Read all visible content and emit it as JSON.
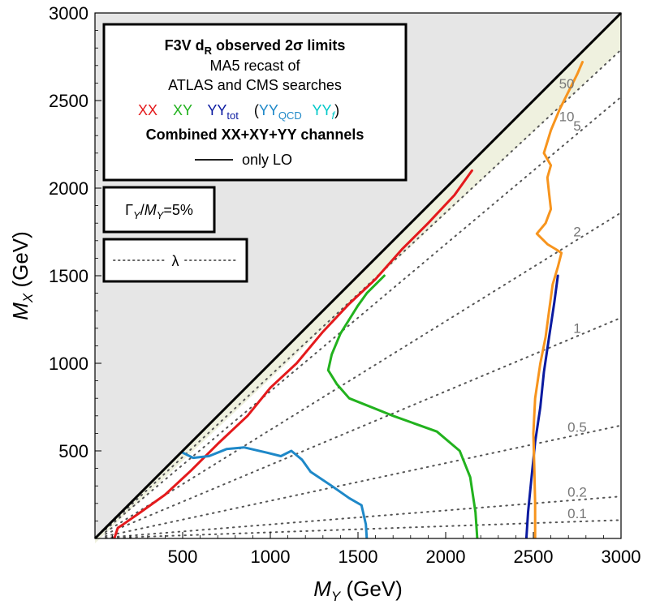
{
  "chart_data": {
    "type": "line",
    "xlabel": {
      "symbol": "M",
      "sub": "Y",
      "unit": " (GeV)"
    },
    "ylabel": {
      "symbol": "M",
      "sub": "X",
      "unit": " (GeV)"
    },
    "xlim": [
      0,
      3000
    ],
    "ylim": [
      0,
      3000
    ],
    "x_ticks": [
      500,
      1000,
      1500,
      2000,
      2500,
      3000
    ],
    "y_ticks": [
      500,
      1000,
      1500,
      2000,
      2500,
      3000
    ],
    "grid": false,
    "excluded_region": "M_X > M_Y",
    "legend": {
      "title_main": "F3V d",
      "title_sub": "R",
      "title_rest": " observed 2σ limits",
      "line2": "MA5 recast of",
      "line3": "ATLAS and CMS searches",
      "entries": [
        {
          "label": "XX",
          "color": "#e41a1c"
        },
        {
          "label": "XY",
          "color": "#22b21e"
        },
        {
          "label": "YY",
          "sub": "tot",
          "color": "#0a1aa0"
        },
        {
          "label": "(",
          "color": "#000000"
        },
        {
          "label": "YY",
          "sub": "QCD",
          "color": "#1e88c8"
        },
        {
          "label": "YY",
          "sub": "f",
          "color": "#00c8c8"
        },
        {
          "label": ")",
          "color": "#000000"
        }
      ],
      "combined": {
        "label": "Combined XX+XY+YY channels",
        "color": "#f7941d"
      },
      "lo_label": "only LO"
    },
    "width_box": {
      "gamma": "Γ",
      "sub1": "Y",
      "slash": "/",
      "m": "M",
      "sub2": "Y",
      "value": "=5%"
    },
    "lambda_box": {
      "label": "λ"
    },
    "lambda_contours": [
      {
        "label": "50",
        "slope": 1.0
      },
      {
        "label": "10",
        "slope": 0.93
      },
      {
        "label": "5",
        "slope": 0.84
      },
      {
        "label": "2",
        "slope": 0.62
      },
      {
        "label": "1",
        "slope": 0.42
      },
      {
        "label": "0.5",
        "slope": 0.215
      },
      {
        "label": "0.2",
        "slope": 0.08
      },
      {
        "label": "0.1",
        "slope": 0.035
      }
    ],
    "series": [
      {
        "name": "XX",
        "color": "#e41a1c",
        "x": [
          110,
          130,
          160,
          260,
          400,
          550,
          700,
          870,
          1000,
          1150,
          1300,
          1450,
          1600,
          1750,
          1900,
          2050,
          2150
        ],
        "y": [
          0,
          60,
          80,
          150,
          250,
          390,
          540,
          700,
          860,
          1000,
          1180,
          1340,
          1480,
          1650,
          1800,
          1960,
          2100
        ]
      },
      {
        "name": "XY",
        "color": "#22b21e",
        "x": [
          2180,
          2170,
          2140,
          2080,
          1950,
          1700,
          1450,
          1380,
          1330,
          1350,
          1400,
          1450,
          1500,
          1550,
          1650
        ],
        "y": [
          0,
          150,
          350,
          500,
          610,
          700,
          800,
          880,
          960,
          1050,
          1170,
          1250,
          1330,
          1400,
          1500
        ]
      },
      {
        "name": "YY_tot",
        "color": "#0a1aa0",
        "x": [
          2460,
          2470,
          2490,
          2510,
          2540,
          2560,
          2590,
          2620,
          2640
        ],
        "y": [
          0,
          150,
          350,
          550,
          750,
          950,
          1150,
          1350,
          1500
        ]
      },
      {
        "name": "YY_QCD",
        "color": "#1e88c8",
        "x": [
          1550,
          1545,
          1520,
          1450,
          1350,
          1230,
          1180,
          1120,
          1060,
          980,
          850,
          750,
          650,
          560,
          500
        ],
        "y": [
          0,
          80,
          190,
          230,
          300,
          380,
          450,
          500,
          470,
          490,
          520,
          510,
          470,
          460,
          490
        ]
      },
      {
        "name": "Combined",
        "color": "#f7941d",
        "x": [
          2510,
          2510,
          2505,
          2500,
          2510,
          2540,
          2570,
          2590,
          2610,
          2640,
          2660,
          2630,
          2580,
          2520,
          2570,
          2600,
          2590,
          2580,
          2600,
          2560,
          2600,
          2650,
          2700,
          2750,
          2780
        ],
        "y": [
          0,
          200,
          420,
          600,
          800,
          1000,
          1150,
          1300,
          1450,
          1550,
          1630,
          1650,
          1680,
          1740,
          1800,
          1880,
          1970,
          2060,
          2130,
          2200,
          2330,
          2450,
          2550,
          2650,
          2720
        ]
      }
    ]
  }
}
